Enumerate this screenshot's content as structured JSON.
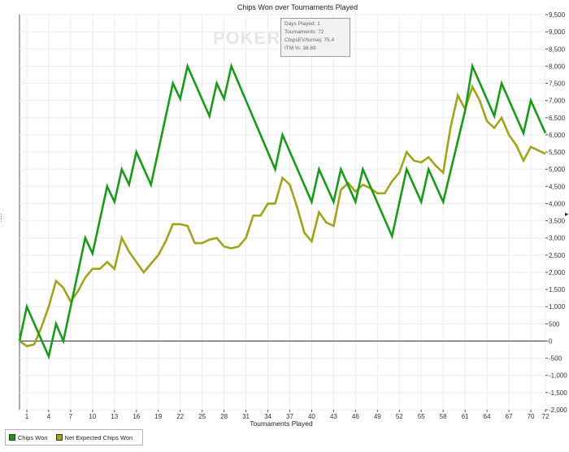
{
  "chart_data": {
    "type": "line",
    "title": "Chips Won over Tournaments Played",
    "xlabel": "Tournaments Played",
    "ylabel": "",
    "xlim": [
      0,
      72
    ],
    "ylim": [
      -2000,
      9500
    ],
    "x_ticks": [
      1,
      4,
      7,
      10,
      13,
      16,
      19,
      22,
      25,
      28,
      31,
      34,
      37,
      40,
      43,
      46,
      49,
      52,
      55,
      58,
      61,
      64,
      67,
      70,
      72
    ],
    "y_ticks": [
      -2000,
      -1500,
      -1000,
      -500,
      0,
      500,
      1000,
      1500,
      2000,
      2500,
      3000,
      3500,
      4000,
      4500,
      5000,
      5500,
      6000,
      6500,
      7000,
      7500,
      8000,
      8500,
      9000,
      9500
    ],
    "y_tick_labels": [
      "-2,000",
      "-1,500",
      "-1,000",
      "-500",
      "0",
      "500",
      "1,000",
      "1,500",
      "2,000",
      "2,500",
      "3,000",
      "3,500",
      "4,000",
      "4,500",
      "5,000",
      "5,500",
      "6,000",
      "6,500",
      "7,000",
      "7,500",
      "8,000",
      "8,500",
      "9,000",
      "9,500"
    ],
    "grid": true,
    "legend_position": "bottom-left",
    "watermark": "POKER",
    "series": [
      {
        "name": "Chips Won",
        "color": "#1a9a1a",
        "points": [
          [
            0,
            0
          ],
          [
            1,
            1000
          ],
          [
            4,
            -450
          ],
          [
            5,
            500
          ],
          [
            6,
            0
          ],
          [
            9,
            3000
          ],
          [
            10,
            2550
          ],
          [
            12,
            4500
          ],
          [
            13,
            4050
          ],
          [
            14,
            5000
          ],
          [
            15,
            4550
          ],
          [
            16,
            5500
          ],
          [
            18,
            4550
          ],
          [
            21,
            7500
          ],
          [
            22,
            7050
          ],
          [
            23,
            8000
          ],
          [
            26,
            6550
          ],
          [
            27,
            7500
          ],
          [
            28,
            7050
          ],
          [
            29,
            8000
          ],
          [
            35,
            5000
          ],
          [
            36,
            6000
          ],
          [
            40,
            4050
          ],
          [
            41,
            5000
          ],
          [
            43,
            4050
          ],
          [
            44,
            5000
          ],
          [
            46,
            4050
          ],
          [
            47,
            5000
          ],
          [
            51,
            3050
          ],
          [
            53,
            5000
          ],
          [
            55,
            4050
          ],
          [
            56,
            5000
          ],
          [
            58,
            4050
          ],
          [
            61,
            6700
          ],
          [
            62,
            8000
          ],
          [
            65,
            6550
          ],
          [
            66,
            7500
          ],
          [
            69,
            6050
          ],
          [
            70,
            7000
          ],
          [
            72,
            6050
          ]
        ]
      },
      {
        "name": "Net Expected Chips Won",
        "color": "#9ea51b",
        "points": [
          [
            0,
            0
          ],
          [
            1,
            -150
          ],
          [
            2,
            -100
          ],
          [
            3,
            400
          ],
          [
            4,
            1000
          ],
          [
            5,
            1750
          ],
          [
            6,
            1550
          ],
          [
            7,
            1150
          ],
          [
            8,
            1450
          ],
          [
            9,
            1850
          ],
          [
            10,
            2100
          ],
          [
            11,
            2100
          ],
          [
            12,
            2300
          ],
          [
            13,
            2100
          ],
          [
            14,
            3000
          ],
          [
            15,
            2600
          ],
          [
            17,
            2000
          ],
          [
            18,
            2250
          ],
          [
            19,
            2500
          ],
          [
            20,
            2900
          ],
          [
            21,
            3400
          ],
          [
            22,
            3400
          ],
          [
            23,
            3350
          ],
          [
            24,
            2850
          ],
          [
            25,
            2850
          ],
          [
            26,
            2950
          ],
          [
            27,
            3000
          ],
          [
            28,
            2750
          ],
          [
            29,
            2700
          ],
          [
            30,
            2750
          ],
          [
            31,
            3000
          ],
          [
            32,
            3650
          ],
          [
            33,
            3650
          ],
          [
            34,
            4000
          ],
          [
            35,
            4000
          ],
          [
            36,
            4750
          ],
          [
            37,
            4550
          ],
          [
            38,
            3900
          ],
          [
            39,
            3150
          ],
          [
            40,
            2900
          ],
          [
            41,
            3750
          ],
          [
            42,
            3450
          ],
          [
            43,
            3350
          ],
          [
            44,
            4400
          ],
          [
            45,
            4600
          ],
          [
            46,
            4350
          ],
          [
            47,
            4550
          ],
          [
            48,
            4450
          ],
          [
            49,
            4300
          ],
          [
            50,
            4300
          ],
          [
            51,
            4650
          ],
          [
            52,
            4900
          ],
          [
            53,
            5500
          ],
          [
            54,
            5250
          ],
          [
            55,
            5200
          ],
          [
            56,
            5350
          ],
          [
            57,
            5100
          ],
          [
            58,
            4900
          ],
          [
            59,
            6200
          ],
          [
            60,
            7150
          ],
          [
            61,
            6750
          ],
          [
            62,
            7400
          ],
          [
            63,
            7000
          ],
          [
            64,
            6400
          ],
          [
            65,
            6200
          ],
          [
            66,
            6500
          ],
          [
            67,
            6000
          ],
          [
            68,
            5700
          ],
          [
            69,
            5250
          ],
          [
            70,
            5650
          ],
          [
            71,
            5550
          ],
          [
            72,
            5450
          ]
        ]
      }
    ],
    "tooltip": {
      "lines": [
        "Days Played: 1",
        "Tournaments: 72",
        "ChipsEV/turniej: 75.4",
        "ITM %: 38.89"
      ]
    }
  },
  "legend": {
    "items": [
      {
        "label": "Chips Won",
        "color": "#1a9a1a"
      },
      {
        "label": "Net Expected Chips Won",
        "color": "#9ea51b"
      }
    ]
  }
}
